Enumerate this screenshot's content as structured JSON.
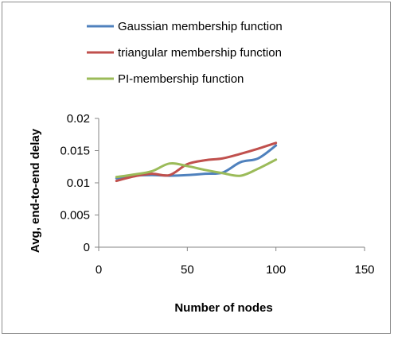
{
  "chart_data": {
    "type": "line",
    "title": "",
    "xlabel": "Number of nodes",
    "ylabel": "Avg, end-to-end delay",
    "xlim": [
      0,
      150
    ],
    "ylim": [
      0,
      0.02
    ],
    "x_ticks": [
      "0",
      "50",
      "100",
      "150"
    ],
    "y_ticks": [
      "0",
      "0.005",
      "0.01",
      "0.015",
      "0.02"
    ],
    "grid": false,
    "legend_position": "top",
    "series": [
      {
        "name": "Gaussian membership function",
        "color": "#4f81bd",
        "x": [
          10,
          20,
          30,
          40,
          50,
          60,
          70,
          80,
          90,
          100
        ],
        "y": [
          0.0107,
          0.0111,
          0.0112,
          0.0111,
          0.0112,
          0.0114,
          0.0116,
          0.0132,
          0.0138,
          0.0158
        ]
      },
      {
        "name": "triangular membership function",
        "color": "#c0504d",
        "x": [
          10,
          20,
          30,
          40,
          50,
          60,
          70,
          80,
          90,
          100
        ],
        "y": [
          0.0103,
          0.011,
          0.0114,
          0.0112,
          0.0129,
          0.0135,
          0.0138,
          0.0145,
          0.0153,
          0.0162
        ]
      },
      {
        "name": "PI-membership function",
        "color": "#9bbb59",
        "x": [
          10,
          20,
          30,
          40,
          50,
          60,
          70,
          80,
          90,
          100
        ],
        "y": [
          0.0109,
          0.0113,
          0.0118,
          0.013,
          0.0126,
          0.012,
          0.0115,
          0.0111,
          0.0122,
          0.0136
        ]
      }
    ]
  }
}
